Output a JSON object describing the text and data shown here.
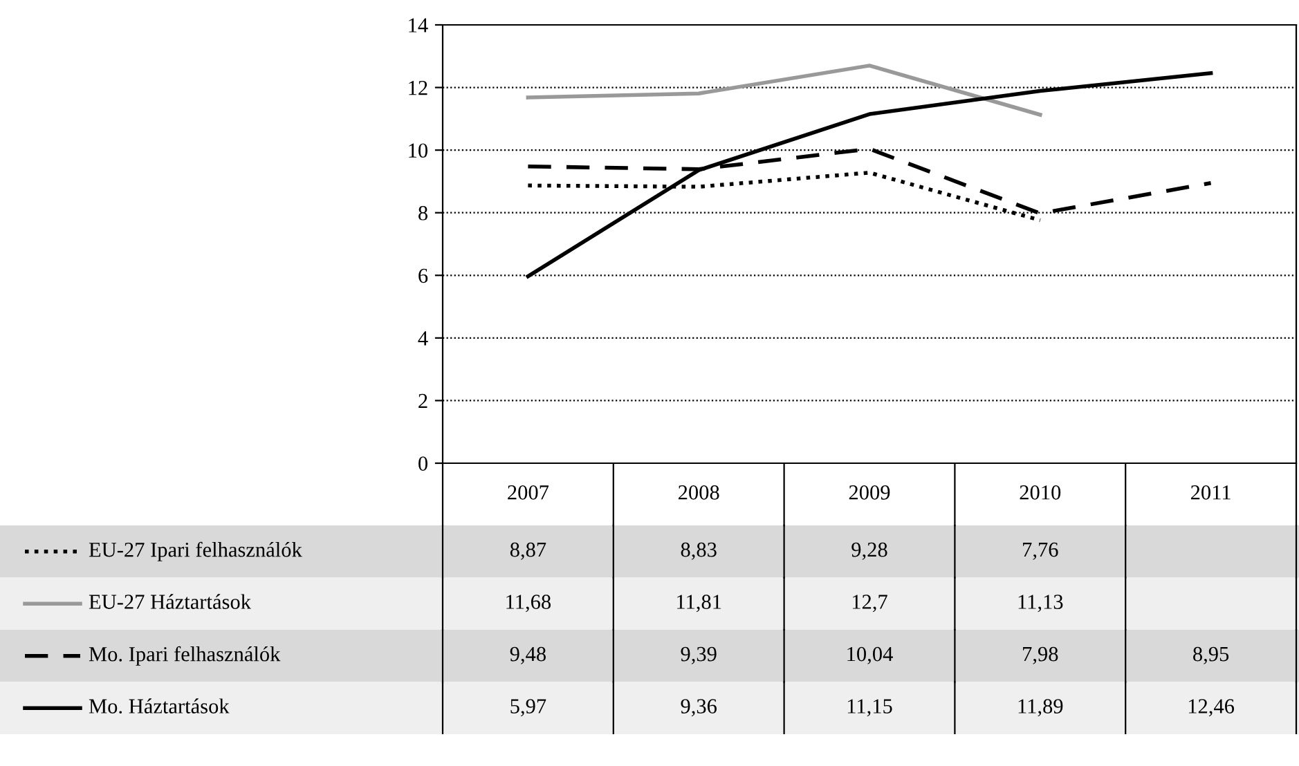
{
  "chart_data": {
    "type": "line",
    "categories": [
      "2007",
      "2008",
      "2009",
      "2010",
      "2011"
    ],
    "series": [
      {
        "name": "EU-27 Ipari felhasználók",
        "color": "#000000",
        "line_style": "dotted",
        "values": [
          8.87,
          8.83,
          9.28,
          7.76,
          null
        ],
        "value_labels": [
          "8,87",
          "8,83",
          "9,28",
          "7,76",
          null
        ]
      },
      {
        "name": "EU-27 Háztartások",
        "color": "#999999",
        "line_style": "solid",
        "values": [
          11.68,
          11.81,
          12.7,
          11.13,
          null
        ],
        "value_labels": [
          "11,68",
          "11,81",
          "12,7",
          "11,13",
          null
        ]
      },
      {
        "name": "Mo. Ipari felhasználók",
        "color": "#000000",
        "line_style": "dashed",
        "values": [
          9.48,
          9.39,
          10.04,
          7.98,
          8.95
        ],
        "value_labels": [
          "9,48",
          "9,39",
          "10,04",
          "7,98",
          "8,95"
        ]
      },
      {
        "name": "Mo. Háztartások",
        "color": "#000000",
        "line_style": "solid",
        "values": [
          5.97,
          9.36,
          11.15,
          11.89,
          12.46
        ],
        "value_labels": [
          "5,97",
          "9,36",
          "11,15",
          "11,89",
          "12,46"
        ]
      }
    ],
    "ylim": [
      0,
      14
    ],
    "yticks": [
      0,
      2,
      4,
      6,
      8,
      10,
      12,
      14
    ],
    "grid": "y",
    "legend": "bottom left"
  }
}
